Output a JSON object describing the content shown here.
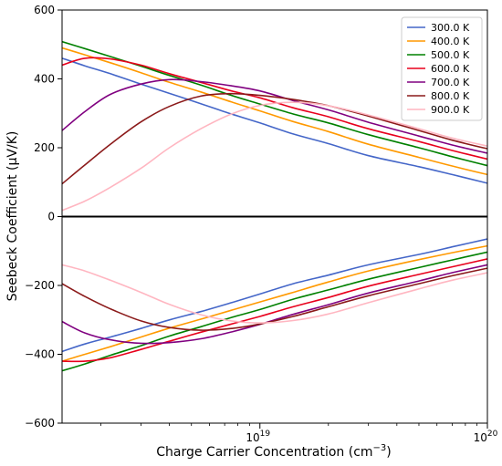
{
  "chart_data": {
    "type": "line",
    "xlabel_main": "Charge Carrier Concentration (cm",
    "xlabel_sup": "−3",
    "xlabel_end": ")",
    "ylabel": "Seebeck Coefficient (μV/K)",
    "x_scale": "log",
    "xlim": [
      1.35e+18,
      1e+20
    ],
    "ylim": [
      -600,
      600
    ],
    "y_ticks": [
      600,
      400,
      200,
      0,
      -200,
      -400,
      -600
    ],
    "x_ticks": [
      {
        "value": 1e+19,
        "base": "10",
        "exp": "19"
      },
      {
        "value": 1e+20,
        "base": "10",
        "exp": "20"
      }
    ],
    "zero_line": true,
    "grid": false,
    "legend_position": "top-right",
    "x": [
      1.35e+18,
      1.7e+18,
      2.2e+18,
      3e+18,
      4e+18,
      5.5e+18,
      7.5e+18,
      1e+19,
      1.4e+19,
      2e+19,
      3e+19,
      5e+19,
      7e+19,
      1e+20
    ],
    "series": [
      {
        "name": "300.0 K",
        "color": "#4466c8",
        "pos": [
          460,
          438,
          415,
          385,
          358,
          328,
          298,
          272,
          240,
          212,
          177,
          145,
          122,
          97
        ],
        "neg": [
          -392,
          -370,
          -350,
          -325,
          -300,
          -276,
          -250,
          -225,
          -195,
          -170,
          -140,
          -110,
          -88,
          -65
        ]
      },
      {
        "name": "400.0 K",
        "color": "#ff9900",
        "pos": [
          490,
          470,
          447,
          418,
          390,
          362,
          333,
          307,
          276,
          247,
          210,
          172,
          147,
          122
        ],
        "neg": [
          -420,
          -400,
          -378,
          -350,
          -324,
          -298,
          -272,
          -248,
          -220,
          -190,
          -158,
          -125,
          -105,
          -85
        ]
      },
      {
        "name": "500.0 K",
        "color": "#008000",
        "pos": [
          508,
          488,
          465,
          437,
          410,
          382,
          352,
          327,
          298,
          272,
          238,
          200,
          174,
          148
        ],
        "neg": [
          -448,
          -428,
          -403,
          -375,
          -347,
          -320,
          -293,
          -270,
          -240,
          -213,
          -182,
          -148,
          -126,
          -103
        ]
      },
      {
        "name": "600.0 K",
        "color": "#e8001c",
        "pos": [
          440,
          460,
          458,
          440,
          415,
          390,
          365,
          345,
          316,
          290,
          255,
          218,
          192,
          167
        ],
        "neg": [
          -420,
          -420,
          -410,
          -386,
          -362,
          -336,
          -312,
          -290,
          -262,
          -235,
          -202,
          -168,
          -146,
          -123
        ]
      },
      {
        "name": "700.0 K",
        "color": "#800080",
        "pos": [
          250,
          305,
          355,
          385,
          398,
          392,
          380,
          365,
          337,
          310,
          274,
          234,
          208,
          184
        ],
        "neg": [
          -305,
          -338,
          -358,
          -368,
          -366,
          -355,
          -335,
          -313,
          -284,
          -256,
          -222,
          -187,
          -163,
          -140
        ]
      },
      {
        "name": "800.0 K",
        "color": "#8b1a1a",
        "pos": [
          95,
          150,
          210,
          275,
          320,
          350,
          357,
          352,
          340,
          322,
          292,
          250,
          222,
          197
        ],
        "neg": [
          -195,
          -232,
          -268,
          -303,
          -322,
          -330,
          -325,
          -312,
          -290,
          -262,
          -230,
          -195,
          -172,
          -150
        ]
      },
      {
        "name": "900.0 K",
        "color": "#ffb6c1",
        "pos": [
          18,
          45,
          85,
          140,
          200,
          255,
          298,
          323,
          332,
          322,
          295,
          255,
          228,
          205
        ],
        "neg": [
          -140,
          -158,
          -185,
          -220,
          -255,
          -285,
          -303,
          -309,
          -302,
          -283,
          -250,
          -210,
          -185,
          -163
        ]
      }
    ]
  }
}
